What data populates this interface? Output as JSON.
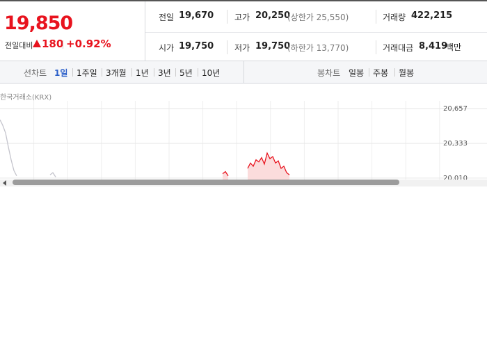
{
  "price": {
    "current": "19,850",
    "change_label": "전일대비",
    "change": "180",
    "change_pct": "+0.92%"
  },
  "stats": [
    {
      "label": "전일",
      "value": "19,670"
    },
    {
      "label": "고가",
      "value": "20,250",
      "note": "(상한가 25,550)"
    },
    {
      "label": "거래량",
      "value": "422,215"
    },
    {
      "label": "시가",
      "value": "19,750"
    },
    {
      "label": "저가",
      "value": "19,750",
      "note": "(하한가 13,770)"
    },
    {
      "label": "거래대금",
      "value": "8,419",
      "unit": "백만"
    }
  ],
  "line_tabs": {
    "label": "선차트",
    "items": [
      "1일",
      "1주일",
      "3개월",
      "1년",
      "3년",
      "5년",
      "10년"
    ],
    "active": 0
  },
  "candle_tabs": {
    "label": "봉차트",
    "items": [
      "일봉",
      "주봉",
      "월봉"
    ]
  },
  "chart": {
    "type": "line",
    "source": "한국거래소(KRX)",
    "xlim": [
      0,
      160
    ],
    "ylim": [
      19996,
      20657
    ],
    "yticks": [
      {
        "value": 20657,
        "label": "20,657"
      },
      {
        "value": 20333,
        "label": "20,333"
      },
      {
        "value": 20010,
        "label": "20,010"
      }
    ],
    "series": [
      {
        "color": "#c4c4cc",
        "x": [
          0,
          1,
          2,
          3,
          4,
          5,
          6,
          7,
          18,
          19,
          20
        ],
        "values": [
          20553,
          20500,
          20430,
          20300,
          20180,
          20080,
          20030,
          null,
          20040,
          20060,
          20020
        ]
      },
      {
        "color": "#e8131e",
        "fill": "#fbdcdc",
        "x": [
          80,
          81,
          82,
          83,
          89,
          90,
          91,
          92,
          93,
          94,
          95,
          96,
          97,
          98,
          99,
          100,
          101,
          102,
          103,
          104
        ],
        "values": [
          20050,
          20070,
          20030,
          null,
          20100,
          20150,
          20120,
          20180,
          20160,
          20200,
          20140,
          20242,
          20190,
          20210,
          20150,
          20170,
          20100,
          20120,
          20060,
          20040
        ]
      }
    ]
  }
}
